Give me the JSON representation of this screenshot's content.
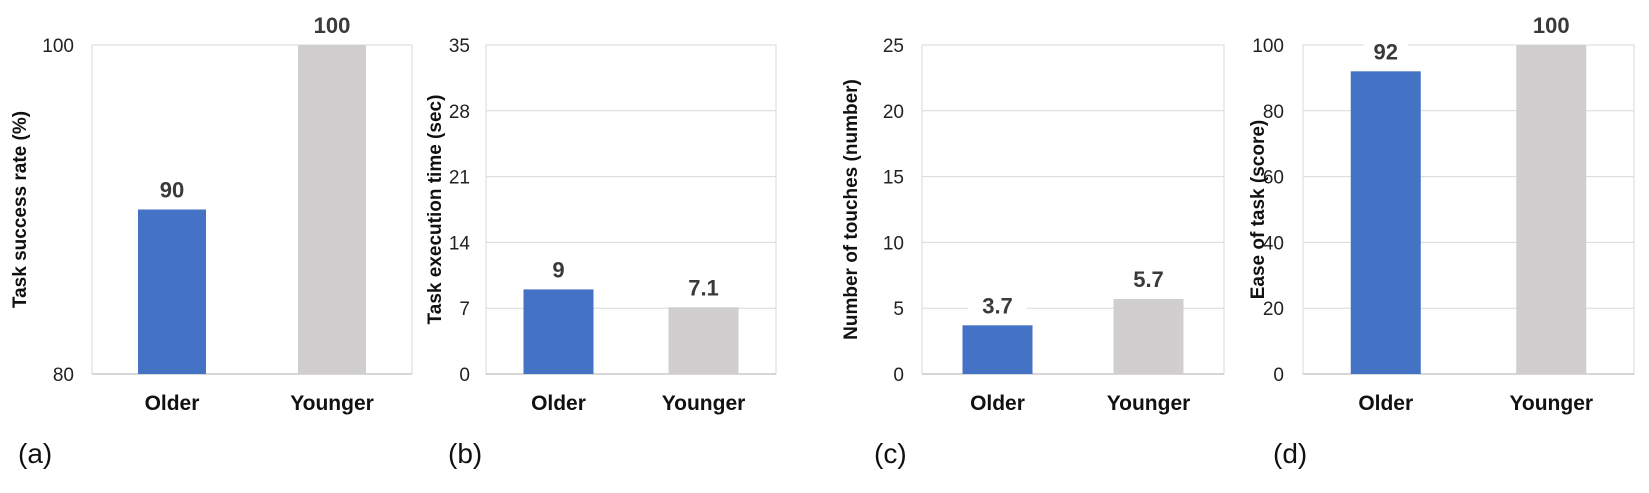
{
  "colors": {
    "older": "#4472C4",
    "younger": "#D0CECE"
  },
  "chart_data": [
    {
      "type": "bar",
      "panel_label": "(a)",
      "ylabel": "Task success rate (%)",
      "categories": [
        "Older",
        "Younger"
      ],
      "values": [
        90,
        100
      ],
      "data_labels": [
        "90",
        "100"
      ],
      "ylim": [
        80,
        100
      ],
      "yticks": [
        "80",
        "100"
      ],
      "grid": false
    },
    {
      "type": "bar",
      "panel_label": "(b)",
      "ylabel": "Task execution time (sec)",
      "categories": [
        "Older",
        "Younger"
      ],
      "values": [
        9,
        7.1
      ],
      "data_labels": [
        "9",
        "7.1"
      ],
      "ylim": [
        0,
        35
      ],
      "yticks": [
        "0",
        "7",
        "14",
        "21",
        "28",
        "35"
      ],
      "grid": true
    },
    {
      "type": "bar",
      "panel_label": "(c)",
      "ylabel": "Number of touches (number)",
      "categories": [
        "Older",
        "Younger"
      ],
      "values": [
        3.7,
        5.7
      ],
      "data_labels": [
        "3.7",
        "5.7"
      ],
      "ylim": [
        0,
        25
      ],
      "yticks": [
        "0",
        "5",
        "10",
        "15",
        "20",
        "25"
      ],
      "grid": true
    },
    {
      "type": "bar",
      "panel_label": "(d)",
      "ylabel": "Ease of task (score)",
      "categories": [
        "Older",
        "Younger"
      ],
      "values": [
        92,
        100
      ],
      "data_labels": [
        "92",
        "100"
      ],
      "ylim": [
        0,
        100
      ],
      "yticks": [
        "0",
        "20",
        "40",
        "60",
        "80",
        "100"
      ],
      "grid": true
    }
  ]
}
